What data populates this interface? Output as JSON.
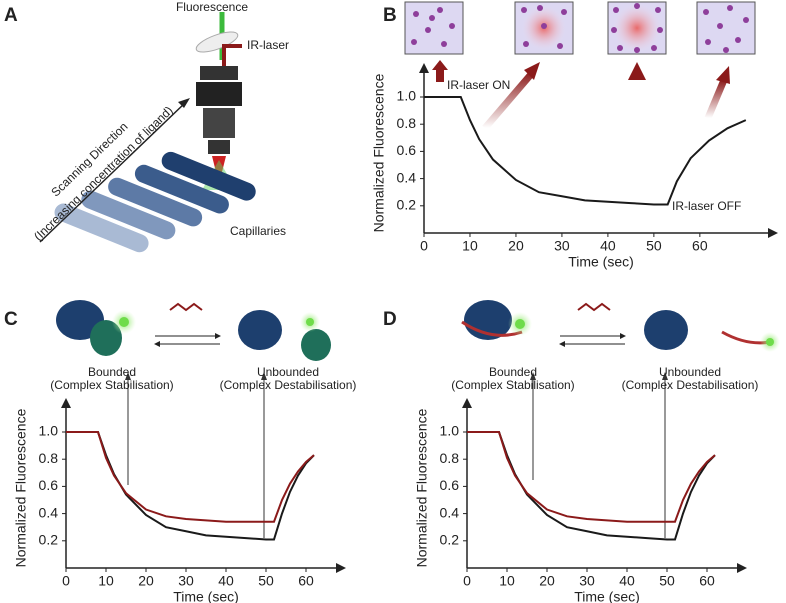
{
  "panels": {
    "a": {
      "label": "A",
      "fluorescence": "Fluorescence",
      "laser": "IR-laser",
      "direction": "Scanning Direction",
      "direction_note": "(Increasing concentration of ligand)",
      "capillaries": "Capillaries"
    },
    "b": {
      "label": "B"
    },
    "c": {
      "label": "C",
      "left": "Bounded",
      "left_note": "(Complex Stabilisation)",
      "right": "Unbounded",
      "right_note": "(Complex Destabilisation)"
    },
    "d": {
      "label": "D",
      "left": "Bounded",
      "left_note": "(Complex Stabilisation)",
      "right": "Unbounded",
      "right_note": "(Complex Destabilisation)"
    }
  },
  "chart_data": [
    {
      "type": "line",
      "xlabel": "Time (sec)",
      "ylabel": "Normalized Fluorescence",
      "annotations": [
        "IR-laser ON",
        "IR-laser OFF"
      ],
      "x": [
        0,
        8,
        10,
        12,
        15,
        20,
        25,
        30,
        35,
        40,
        45,
        50,
        53,
        55,
        58,
        62,
        66,
        70
      ],
      "series": [
        {
          "color": "#1a1a1a",
          "values": [
            1.0,
            1.0,
            0.83,
            0.69,
            0.54,
            0.39,
            0.3,
            0.27,
            0.24,
            0.23,
            0.22,
            0.21,
            0.21,
            0.38,
            0.55,
            0.68,
            0.77,
            0.83
          ]
        }
      ],
      "xlim": [
        0,
        77
      ],
      "ylim": [
        0,
        1.25
      ],
      "xticks": [
        0,
        10,
        20,
        30,
        40,
        50,
        60
      ],
      "yticks": [
        0.2,
        0.4,
        0.6,
        0.8,
        {
          "value": 1,
          "label": "1.0"
        }
      ]
    },
    {
      "type": "line",
      "xlabel": "Time (sec)",
      "ylabel": "Normalized Fluorescence",
      "x": [
        0,
        8,
        10,
        12,
        15,
        20,
        25,
        30,
        35,
        40,
        45,
        50,
        52,
        54,
        56,
        58,
        60,
        62
      ],
      "series": [
        {
          "color": "#1a1a1a",
          "values": [
            1.0,
            1.0,
            0.83,
            0.69,
            0.54,
            0.39,
            0.3,
            0.27,
            0.24,
            0.23,
            0.22,
            0.21,
            0.21,
            0.4,
            0.56,
            0.68,
            0.77,
            0.83
          ]
        },
        {
          "color": "#8b1a1a",
          "values": [
            1.0,
            1.0,
            0.81,
            0.68,
            0.55,
            0.43,
            0.38,
            0.36,
            0.35,
            0.34,
            0.34,
            0.34,
            0.34,
            0.5,
            0.62,
            0.71,
            0.78,
            0.83
          ]
        }
      ],
      "xlim": [
        0,
        70
      ],
      "ylim": [
        0,
        1.25
      ],
      "xticks": [
        0,
        10,
        20,
        30,
        40,
        50,
        60
      ],
      "yticks": [
        0.2,
        0.4,
        0.6,
        0.8,
        {
          "value": 1,
          "label": "1.0"
        }
      ]
    },
    {
      "type": "line",
      "xlabel": "Time (sec)",
      "ylabel": "Normalized Fluorescence",
      "x": [
        0,
        8,
        10,
        12,
        15,
        20,
        25,
        30,
        35,
        40,
        45,
        50,
        52,
        54,
        56,
        58,
        60,
        62
      ],
      "series": [
        {
          "color": "#1a1a1a",
          "values": [
            1.0,
            1.0,
            0.83,
            0.69,
            0.54,
            0.39,
            0.3,
            0.27,
            0.24,
            0.23,
            0.22,
            0.21,
            0.21,
            0.4,
            0.56,
            0.68,
            0.77,
            0.83
          ]
        },
        {
          "color": "#8b1a1a",
          "values": [
            1.0,
            1.0,
            0.81,
            0.68,
            0.55,
            0.43,
            0.38,
            0.36,
            0.35,
            0.34,
            0.34,
            0.34,
            0.34,
            0.5,
            0.62,
            0.71,
            0.78,
            0.83
          ]
        }
      ],
      "xlim": [
        0,
        70
      ],
      "ylim": [
        0,
        1.25
      ],
      "xticks": [
        0,
        10,
        20,
        30,
        40,
        50,
        60
      ],
      "yticks": [
        0.2,
        0.4,
        0.6,
        0.8,
        {
          "value": 1,
          "label": "1.0"
        }
      ]
    }
  ]
}
